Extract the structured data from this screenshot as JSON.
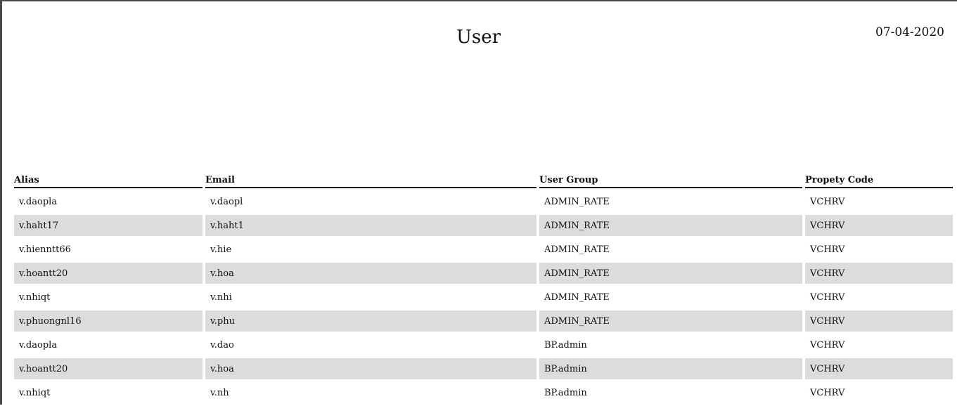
{
  "title": "User",
  "date": "07-04-2020",
  "columns": [
    "Alias",
    "Email",
    "User Group",
    "Propety Code"
  ],
  "rows": [
    [
      "v.daopla",
      "v.daopl",
      "ADMIN_RATE",
      "VCHRV"
    ],
    [
      "v.haht17",
      "v.haht1",
      "ADMIN_RATE",
      "VCHRV"
    ],
    [
      "v.hienntt66",
      "v.hie",
      "ADMIN_RATE",
      "VCHRV"
    ],
    [
      "v.hoantt20",
      "v.hoa",
      "ADMIN_RATE",
      "VCHRV"
    ],
    [
      "v.nhiqt",
      "v.nhi",
      "ADMIN_RATE",
      "VCHRV"
    ],
    [
      "v.phuongnl16",
      "v.phu",
      "ADMIN_RATE",
      "VCHRV"
    ],
    [
      "v.daopla",
      "v.dao",
      "BP.admin",
      "VCHRV"
    ],
    [
      "v.hoantt20",
      "v.hoa",
      "BP.admin",
      "VCHRV"
    ],
    [
      "v.nhiqt",
      "v.nh",
      "BP.admin",
      "VCHRV"
    ]
  ]
}
